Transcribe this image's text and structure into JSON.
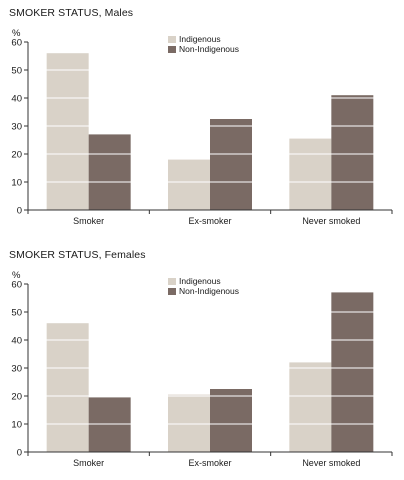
{
  "colors": {
    "indigenous": "#d9d2c8",
    "non_indigenous": "#7a6a64",
    "axis": "#333333",
    "grid": "#ffffff"
  },
  "chart_data": [
    {
      "type": "bar",
      "title": "SMOKER STATUS, Males",
      "ylabel": "%",
      "ylim": [
        0,
        60
      ],
      "yticks": [
        "0",
        "10",
        "20",
        "30",
        "40",
        "50",
        "60"
      ],
      "categories": [
        "Smoker",
        "Ex-smoker",
        "Never smoked"
      ],
      "series": [
        {
          "name": "Indigenous",
          "values": [
            56,
            18,
            25.5
          ]
        },
        {
          "name": "Non-Indigenous",
          "values": [
            27,
            32.5,
            41
          ]
        }
      ],
      "grid": false,
      "legend": "top-center"
    },
    {
      "type": "bar",
      "title": "SMOKER STATUS, Females",
      "ylabel": "%",
      "ylim": [
        0,
        60
      ],
      "yticks": [
        "0",
        "10",
        "20",
        "30",
        "40",
        "50",
        "60"
      ],
      "categories": [
        "Smoker",
        "Ex-smoker",
        "Never smoked"
      ],
      "series": [
        {
          "name": "Indigenous",
          "values": [
            46,
            20.5,
            32
          ]
        },
        {
          "name": "Non-Indigenous",
          "values": [
            19.5,
            22.5,
            57
          ]
        }
      ],
      "grid": false,
      "legend": "top-center"
    }
  ]
}
